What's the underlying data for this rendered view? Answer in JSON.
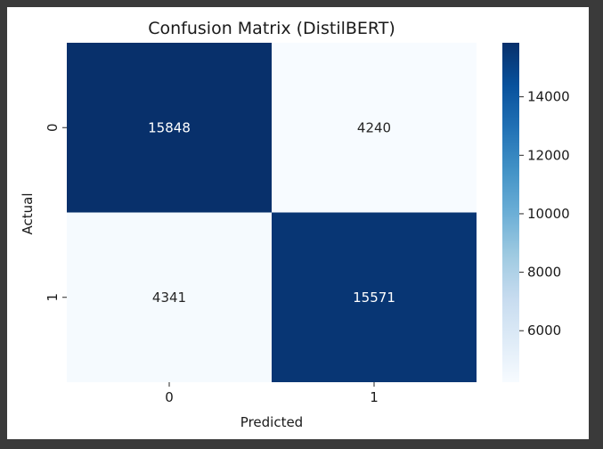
{
  "chart_data": {
    "type": "heatmap",
    "title": "Confusion Matrix (DistilBERT)",
    "xlabel": "Predicted",
    "ylabel": "Actual",
    "x_categories": [
      "0",
      "1"
    ],
    "y_categories": [
      "0",
      "1"
    ],
    "values": [
      [
        15848,
        4240
      ],
      [
        4341,
        15571
      ]
    ],
    "cell_labels": [
      [
        "15848",
        "4240"
      ],
      [
        "4341",
        "15571"
      ]
    ],
    "colormap": "Blues",
    "color_low": "#f7fbff",
    "color_high": "#08306b",
    "vmin": 4240,
    "vmax": 15848,
    "colorbar_ticks": [
      6000,
      8000,
      10000,
      12000,
      14000
    ],
    "colorbar_tick_labels": [
      "6000",
      "8000",
      "10000",
      "12000",
      "14000"
    ],
    "grid": false,
    "colorbar_position": "right"
  }
}
